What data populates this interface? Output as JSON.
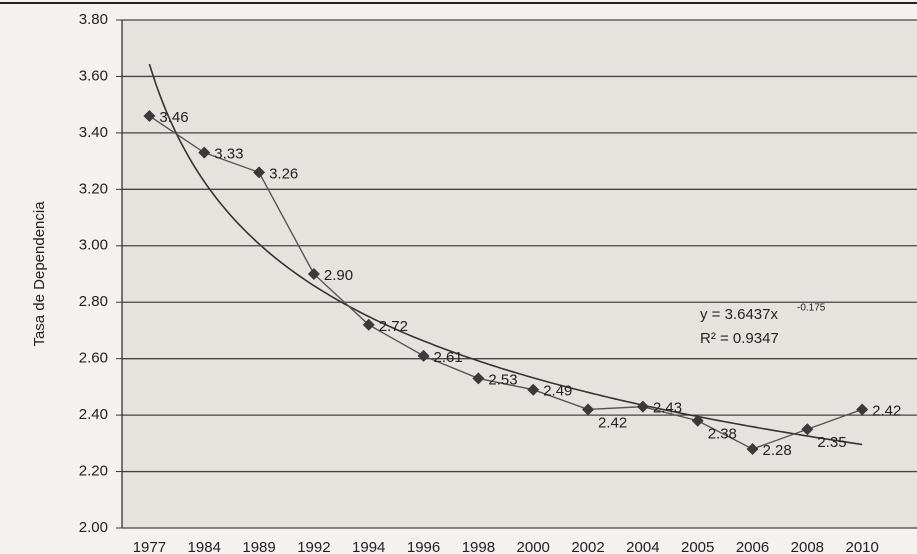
{
  "chart_data": {
    "type": "line",
    "y_label": "Tasa de Dependencia",
    "categories": [
      "1977",
      "1984",
      "1989",
      "1992",
      "1994",
      "1996",
      "1998",
      "2000",
      "2002",
      "2004",
      "2005",
      "2006",
      "2008",
      "2010"
    ],
    "series": [
      {
        "color": "#555555",
        "values": [
          3.46,
          3.33,
          3.26,
          2.9,
          2.72,
          2.61,
          2.53,
          2.49,
          2.42,
          2.43,
          2.38,
          2.28,
          2.35,
          2.42
        ],
        "value_labels": [
          "3.46",
          "3.33",
          "3.26",
          "2.90",
          "2.72",
          "2.61",
          "2.53",
          "2.49",
          "2.42",
          "2.43",
          "2.38",
          "2.28",
          "2.35",
          "2.42"
        ]
      }
    ],
    "trendline": {
      "color": "#333333",
      "coefficient": 3.6437,
      "exponent": -0.175,
      "equation": "y = 3.6437x",
      "exponent_label": "-0.175",
      "r2_label": "R² = 0.9347"
    },
    "ylim": [
      2.0,
      3.8
    ],
    "yticks": [
      {
        "value": 2.0,
        "label": "2.00"
      },
      {
        "value": 2.2,
        "label": "2.20"
      },
      {
        "value": 2.4,
        "label": "2.40"
      },
      {
        "value": 2.6,
        "label": "2.60"
      },
      {
        "value": 2.8,
        "label": "2.80"
      },
      {
        "value": 3.0,
        "label": "3.00"
      },
      {
        "value": 3.2,
        "label": "3.20"
      },
      {
        "value": 3.4,
        "label": "3.40"
      },
      {
        "value": 3.6,
        "label": "3.60"
      },
      {
        "value": 3.8,
        "label": "3.80"
      }
    ],
    "grid": true
  }
}
